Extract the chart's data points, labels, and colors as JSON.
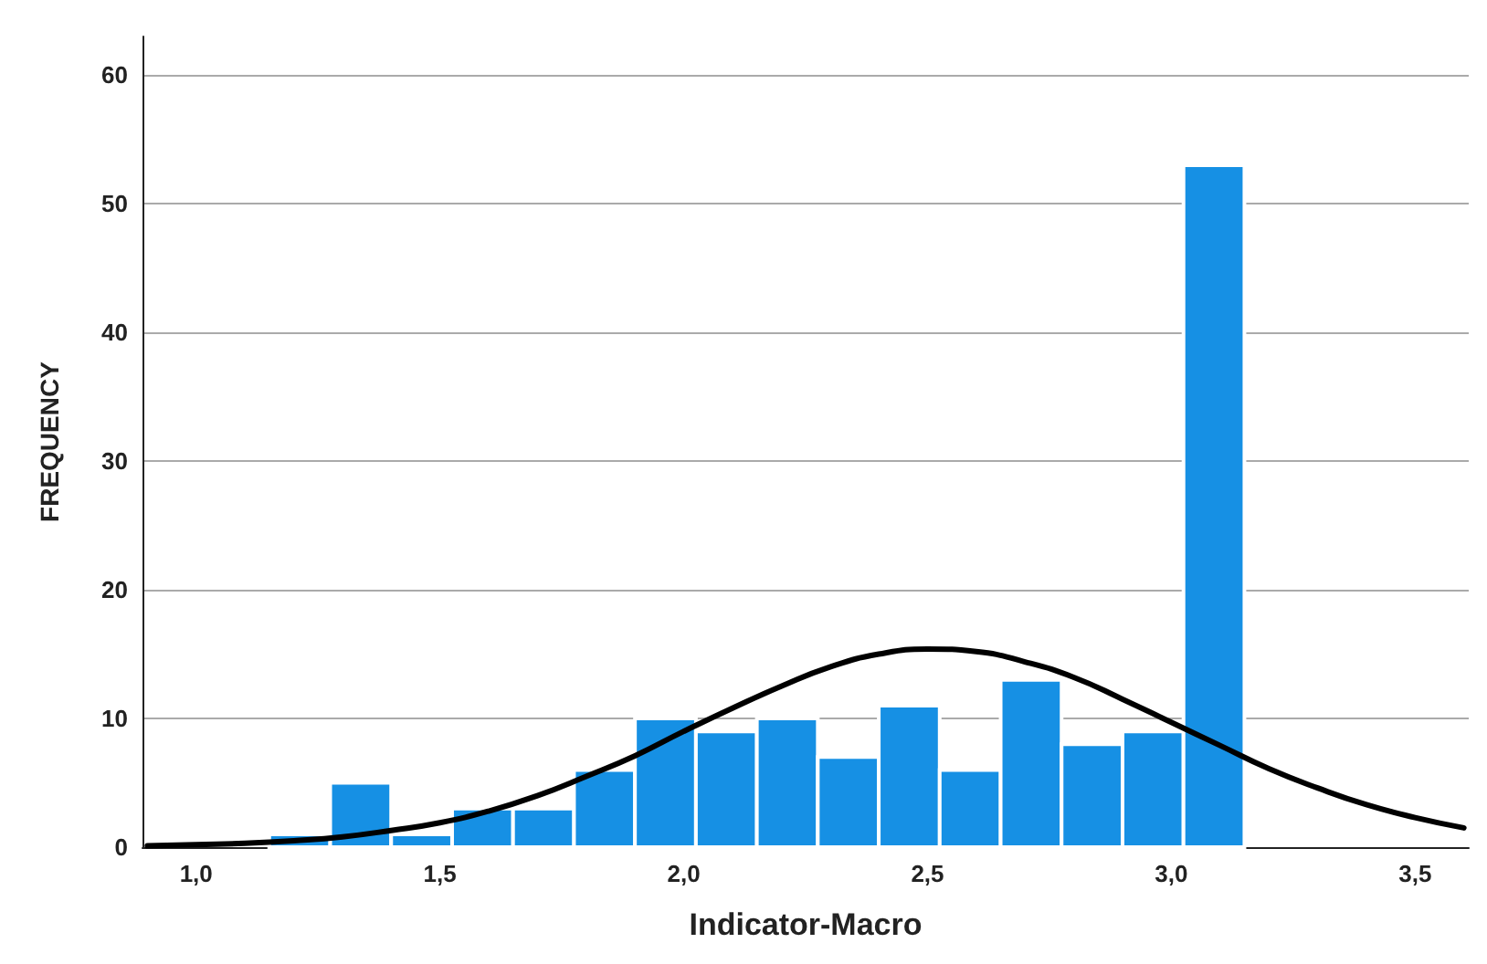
{
  "chart_data": {
    "type": "histogram",
    "xlabel": "Indicator-Macro",
    "ylabel": "FREQUENCY",
    "bins": [
      1.15,
      1.275,
      1.4,
      1.525,
      1.65,
      1.775,
      1.9,
      2.025,
      2.15,
      2.275,
      2.4,
      2.525,
      2.65,
      2.775,
      2.9,
      3.025,
      3.15
    ],
    "values": [
      1,
      5,
      1,
      3,
      3,
      6,
      10,
      9,
      10,
      7,
      11,
      6,
      13,
      8,
      9,
      53
    ],
    "color": "#1690e4",
    "series": [
      {
        "type": "line",
        "color": "#000000",
        "x": [
          0.9,
          1.0,
          1.1,
          1.2,
          1.3,
          1.4,
          1.5,
          1.6,
          1.7,
          1.8,
          1.9,
          2.0,
          2.1,
          2.2,
          2.3,
          2.4,
          2.5,
          2.6,
          2.7,
          2.8,
          2.9,
          3.0,
          3.1,
          3.2,
          3.3,
          3.4,
          3.5,
          3.6
        ],
        "values": [
          0.1,
          0.2,
          0.3,
          0.5,
          0.8,
          1.3,
          1.9,
          2.8,
          4.0,
          5.5,
          7.1,
          9.0,
          10.8,
          12.5,
          14.0,
          15.0,
          15.4,
          15.2,
          14.4,
          13.2,
          11.5,
          9.7,
          7.9,
          6.1,
          4.6,
          3.3,
          2.3,
          1.5
        ]
      }
    ],
    "xlim": [
      0.89,
      3.61
    ],
    "xticks": [
      {
        "value": 1.0,
        "label": "1,0"
      },
      {
        "value": 1.5,
        "label": "1,5"
      },
      {
        "value": 2.0,
        "label": "2,0"
      },
      {
        "value": 2.5,
        "label": "2,5"
      },
      {
        "value": 3.0,
        "label": "3,0"
      },
      {
        "value": 3.5,
        "label": "3,5"
      }
    ],
    "ylim": [
      0,
      63
    ],
    "yticks": [
      0,
      10,
      20,
      30,
      40,
      50,
      60
    ],
    "grid": "y",
    "line_style": "solid",
    "marker": "none"
  }
}
